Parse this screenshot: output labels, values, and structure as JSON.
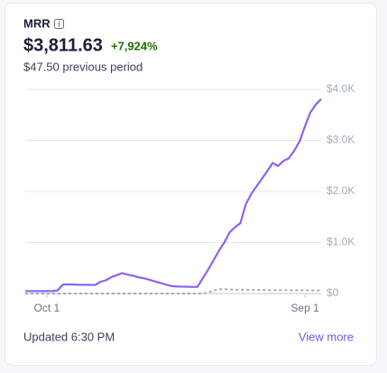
{
  "title": "MRR",
  "amount": "$3,811.63",
  "change": "+7,924%",
  "previous": "$47.50 previous period",
  "updated": "Updated 6:30 PM",
  "link": "View more",
  "chart_data": {
    "type": "line",
    "categories": [
      null,
      null,
      null,
      null,
      "Oct 1",
      null,
      null,
      null,
      null,
      null,
      null,
      null,
      null,
      null,
      null,
      null,
      null,
      null,
      null,
      null,
      null,
      null,
      null,
      null,
      null,
      null,
      null,
      null,
      null,
      null,
      null,
      null,
      null,
      null,
      null,
      null,
      null,
      null,
      null,
      null,
      null,
      null,
      null,
      null,
      null,
      null,
      null,
      null,
      null,
      null,
      null,
      null,
      "Sep 1",
      null,
      null,
      null
    ],
    "series": [
      {
        "color": "#8b63f0",
        "dashed": false,
        "values": [
          47,
          47,
          47,
          47,
          47,
          47,
          60,
          175,
          180,
          175,
          172,
          172,
          170,
          168,
          230,
          260,
          320,
          360,
          400,
          370,
          350,
          320,
          300,
          270,
          240,
          210,
          180,
          150,
          140,
          135,
          132,
          130,
          130,
          300,
          470,
          650,
          840,
          1000,
          1200,
          1300,
          1380,
          1750,
          1950,
          2100,
          2250,
          2400,
          2560,
          2500,
          2600,
          2650,
          2800,
          2980,
          3280,
          3550,
          3700,
          3811.63
        ]
      },
      {
        "color": "#a3acb9",
        "dashed": true,
        "values": [
          0,
          0,
          0,
          0,
          0,
          0,
          0,
          0,
          0,
          0,
          0,
          0,
          0,
          0,
          0,
          0,
          0,
          0,
          0,
          0,
          0,
          0,
          0,
          0,
          0,
          0,
          0,
          0,
          0,
          0,
          0,
          0,
          0,
          0,
          20,
          60,
          85,
          85,
          80,
          75,
          75,
          72,
          70,
          70,
          70,
          68,
          68,
          66,
          66,
          65,
          64,
          63,
          62,
          62,
          60,
          60
        ]
      }
    ],
    "ylim": [
      0,
      4000
    ],
    "yticks": [
      {
        "value": 0,
        "label": "$0"
      },
      {
        "value": 1000,
        "label": "$1.0K"
      },
      {
        "value": 2000,
        "label": "$2.0K"
      },
      {
        "value": 3000,
        "label": "$3.0K"
      },
      {
        "value": 4000,
        "label": "$4.0K"
      }
    ],
    "grid": true
  }
}
